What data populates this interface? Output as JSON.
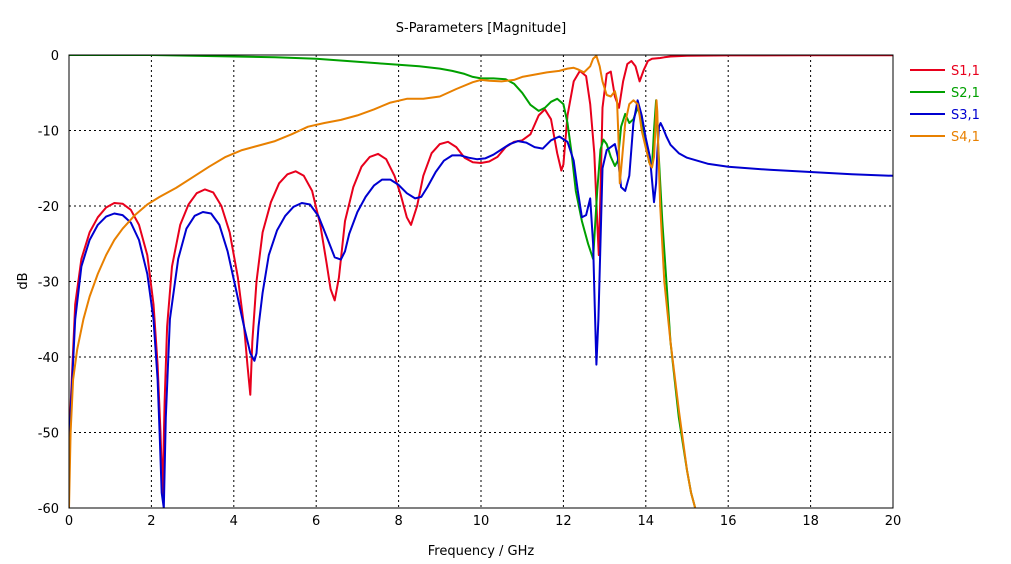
{
  "chart_data": {
    "type": "line",
    "title": "S-Parameters [Magnitude]",
    "xlabel": "Frequency / GHz",
    "ylabel": "dB",
    "xlim": [
      0,
      20
    ],
    "ylim": [
      -60,
      0
    ],
    "xticks": [
      0,
      2,
      4,
      6,
      8,
      10,
      12,
      14,
      16,
      18,
      20
    ],
    "yticks": [
      0,
      -10,
      -20,
      -30,
      -40,
      -50,
      -60
    ],
    "grid": true,
    "legend_position": "right",
    "series": [
      {
        "name": "S1,1",
        "color": "#e8001c",
        "x": [
          0.0,
          0.05,
          0.15,
          0.3,
          0.5,
          0.7,
          0.9,
          1.1,
          1.3,
          1.5,
          1.7,
          1.9,
          2.05,
          2.15,
          2.22,
          2.27,
          2.32,
          2.38,
          2.5,
          2.7,
          2.9,
          3.1,
          3.3,
          3.5,
          3.7,
          3.9,
          4.1,
          4.25,
          4.33,
          4.4,
          4.45,
          4.55,
          4.7,
          4.9,
          5.1,
          5.3,
          5.5,
          5.7,
          5.9,
          6.1,
          6.25,
          6.35,
          6.45,
          6.55,
          6.7,
          6.9,
          7.1,
          7.3,
          7.5,
          7.7,
          7.9,
          8.05,
          8.2,
          8.3,
          8.45,
          8.6,
          8.8,
          9.0,
          9.2,
          9.4,
          9.6,
          9.8,
          10.0,
          10.2,
          10.4,
          10.6,
          10.8,
          11.0,
          11.2,
          11.4,
          11.55,
          11.7,
          11.85,
          11.95,
          12.0,
          12.1,
          12.25,
          12.4,
          12.55,
          12.65,
          12.75,
          12.82,
          12.86,
          12.9,
          12.95,
          13.05,
          13.15,
          13.25,
          13.35,
          13.45,
          13.55,
          13.65,
          13.75,
          13.85,
          13.95,
          14.05,
          14.15,
          14.25,
          14.35,
          14.45,
          14.6,
          15.0,
          16.0,
          18.0,
          20.0
        ],
        "y": [
          -52,
          -45,
          -33,
          -27,
          -23.5,
          -21.5,
          -20.2,
          -19.6,
          -19.7,
          -20.5,
          -22.5,
          -26.5,
          -33,
          -41,
          -50,
          -58.5,
          -46,
          -36,
          -28,
          -22.5,
          -19.8,
          -18.3,
          -17.8,
          -18.2,
          -20,
          -23.5,
          -29.5,
          -36,
          -41,
          -45,
          -38,
          -30,
          -23.5,
          -19.5,
          -17,
          -15.8,
          -15.4,
          -16,
          -18,
          -22.5,
          -27.5,
          -31,
          -32.5,
          -29.5,
          -22,
          -17.5,
          -14.8,
          -13.5,
          -13.1,
          -13.8,
          -16,
          -18.5,
          -21.5,
          -22.5,
          -20,
          -16,
          -13,
          -11.8,
          -11.5,
          -12.2,
          -13.6,
          -14.2,
          -14.3,
          -14.1,
          -13.5,
          -12.2,
          -11.5,
          -11.3,
          -10.5,
          -8,
          -7.2,
          -8.5,
          -13,
          -15.3,
          -14.5,
          -8,
          -3.5,
          -2.1,
          -2.8,
          -6.5,
          -13,
          -22,
          -26.5,
          -18,
          -7,
          -2.5,
          -2.2,
          -5.5,
          -7,
          -3.5,
          -1.2,
          -0.8,
          -1.5,
          -3.5,
          -2,
          -0.8,
          -0.5,
          -0.45,
          -0.4,
          -0.3,
          -0.2,
          -0.1,
          -0.05,
          -0.03,
          -0.02
        ]
      },
      {
        "name": "S2,1",
        "color": "#00a000",
        "x": [
          0.0,
          1.0,
          2.0,
          3.0,
          4.0,
          5.0,
          6.0,
          6.5,
          7.0,
          7.5,
          8.0,
          8.5,
          9.0,
          9.3,
          9.6,
          9.8,
          10.0,
          10.3,
          10.6,
          10.8,
          11.0,
          11.2,
          11.4,
          11.55,
          11.7,
          11.85,
          12.0,
          12.1,
          12.2,
          12.3,
          12.45,
          12.6,
          12.72,
          12.82,
          12.9,
          12.97,
          13.05,
          13.15,
          13.25,
          13.32,
          13.4,
          13.5,
          13.6,
          13.7,
          13.8,
          13.9,
          14.0,
          14.08,
          14.15,
          14.2,
          14.25,
          14.3,
          14.4,
          14.5,
          14.6,
          14.8,
          15.0,
          15.1,
          15.2
        ],
        "y": [
          0,
          0,
          0,
          -0.1,
          -0.2,
          -0.3,
          -0.5,
          -0.7,
          -0.9,
          -1.1,
          -1.3,
          -1.5,
          -1.8,
          -2.1,
          -2.5,
          -2.9,
          -3.1,
          -3.1,
          -3.2,
          -3.8,
          -5,
          -6.6,
          -7.4,
          -7,
          -6.2,
          -5.8,
          -6.5,
          -9,
          -13,
          -18,
          -22,
          -25,
          -27,
          -18,
          -12.5,
          -11.2,
          -11.8,
          -13.5,
          -14.7,
          -14,
          -9.5,
          -7.8,
          -9,
          -8.5,
          -7,
          -8.5,
          -11.5,
          -14.2,
          -14.8,
          -10,
          -6,
          -12,
          -22,
          -30,
          -38,
          -48,
          -55,
          -58,
          -60
        ]
      },
      {
        "name": "S3,1",
        "color": "#0000d0",
        "x": [
          0.0,
          0.05,
          0.15,
          0.3,
          0.5,
          0.7,
          0.9,
          1.1,
          1.3,
          1.5,
          1.7,
          1.9,
          2.05,
          2.15,
          2.2,
          2.25,
          2.3,
          2.35,
          2.45,
          2.65,
          2.85,
          3.05,
          3.25,
          3.45,
          3.65,
          3.85,
          4.05,
          4.25,
          4.4,
          4.5,
          4.55,
          4.6,
          4.7,
          4.85,
          5.05,
          5.25,
          5.45,
          5.65,
          5.85,
          6.05,
          6.25,
          6.45,
          6.6,
          6.7,
          6.8,
          7.0,
          7.2,
          7.4,
          7.6,
          7.8,
          8.0,
          8.2,
          8.4,
          8.55,
          8.7,
          8.9,
          9.1,
          9.3,
          9.5,
          9.7,
          9.9,
          10.1,
          10.3,
          10.5,
          10.7,
          10.9,
          11.1,
          11.3,
          11.5,
          11.7,
          11.9,
          12.1,
          12.25,
          12.35,
          12.45,
          12.55,
          12.65,
          12.72,
          12.76,
          12.8,
          12.85,
          12.95,
          13.05,
          13.15,
          13.25,
          13.32,
          13.4,
          13.5,
          13.6,
          13.7,
          13.8,
          13.9,
          14.0,
          14.1,
          14.2,
          14.25,
          14.28,
          14.32,
          14.36,
          14.42,
          14.5,
          14.6,
          14.8,
          15.0,
          15.5,
          16.0,
          17.0,
          18.0,
          19.0,
          20.0
        ],
        "y": [
          -54,
          -46,
          -35,
          -28,
          -24.5,
          -22.5,
          -21.4,
          -21,
          -21.2,
          -22.2,
          -24.5,
          -29,
          -35,
          -43,
          -50,
          -58,
          -60,
          -48,
          -35,
          -27,
          -23,
          -21.3,
          -20.8,
          -21,
          -22.5,
          -26,
          -31,
          -36,
          -39.5,
          -40.5,
          -39.5,
          -36,
          -31.5,
          -26.5,
          -23.2,
          -21.3,
          -20.1,
          -19.6,
          -19.8,
          -21.3,
          -24,
          -26.8,
          -27.1,
          -26,
          -23.7,
          -20.8,
          -18.8,
          -17.3,
          -16.5,
          -16.5,
          -17.2,
          -18.3,
          -19,
          -18.8,
          -17.5,
          -15.5,
          -14,
          -13.3,
          -13.3,
          -13.6,
          -13.8,
          -13.7,
          -13.2,
          -12.5,
          -11.8,
          -11.4,
          -11.6,
          -12.2,
          -12.4,
          -11.3,
          -10.8,
          -11.5,
          -14,
          -18,
          -21.5,
          -21.2,
          -19,
          -25,
          -33,
          -41,
          -35,
          -15,
          -12.6,
          -12.2,
          -11.8,
          -13.5,
          -17.5,
          -18,
          -16,
          -9,
          -6,
          -8,
          -11,
          -13.5,
          -19.5,
          -17,
          -13,
          -9.5,
          -9,
          -9.7,
          -10.8,
          -11.9,
          -13,
          -13.6,
          -14.4,
          -14.8,
          -15.2,
          -15.5,
          -15.8,
          -16
        ]
      },
      {
        "name": "S4,1",
        "color": "#e88000",
        "x": [
          0.0,
          0.04,
          0.1,
          0.2,
          0.35,
          0.5,
          0.7,
          0.9,
          1.1,
          1.3,
          1.6,
          1.9,
          2.2,
          2.6,
          3.0,
          3.4,
          3.8,
          4.2,
          4.6,
          5.0,
          5.4,
          5.8,
          6.2,
          6.6,
          7.0,
          7.4,
          7.8,
          8.2,
          8.6,
          9.0,
          9.4,
          9.8,
          10.0,
          10.2,
          10.5,
          10.8,
          11.0,
          11.3,
          11.6,
          11.9,
          12.1,
          12.25,
          12.35,
          12.5,
          12.65,
          12.72,
          12.8,
          12.88,
          12.95,
          13.05,
          13.15,
          13.25,
          13.3,
          13.33,
          13.37,
          13.42,
          13.5,
          13.6,
          13.7,
          13.8,
          13.85,
          13.9,
          14.0,
          14.1,
          14.15,
          14.2,
          14.23,
          14.26,
          14.28,
          14.3,
          14.35,
          14.45,
          14.6,
          14.8,
          15.0,
          15.1,
          15.2
        ],
        "y": [
          -60,
          -50,
          -43,
          -39,
          -35,
          -32,
          -29,
          -26.5,
          -24.5,
          -23,
          -21.2,
          -19.8,
          -18.8,
          -17.6,
          -16.2,
          -14.8,
          -13.5,
          -12.6,
          -12,
          -11.4,
          -10.5,
          -9.5,
          -9,
          -8.6,
          -8,
          -7.2,
          -6.3,
          -5.8,
          -5.8,
          -5.5,
          -4.5,
          -3.6,
          -3.3,
          -3.4,
          -3.5,
          -3.3,
          -2.9,
          -2.6,
          -2.3,
          -2.1,
          -1.8,
          -1.7,
          -1.9,
          -2.3,
          -1.5,
          -0.5,
          -0.1,
          -1.5,
          -3.5,
          -5.3,
          -5.5,
          -4.8,
          -6,
          -10,
          -17,
          -14,
          -9,
          -6.5,
          -6,
          -6.5,
          -8,
          -10,
          -12.3,
          -14.5,
          -14.9,
          -13.5,
          -10,
          -6,
          -7.5,
          -12,
          -20,
          -30,
          -38,
          -47,
          -55,
          -58,
          -60
        ]
      }
    ]
  }
}
